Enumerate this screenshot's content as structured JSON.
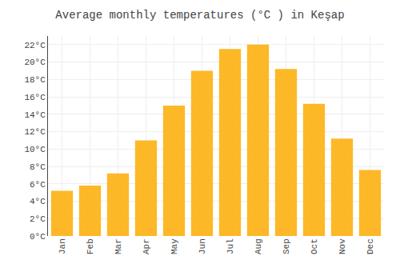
{
  "chart_data": {
    "type": "bar",
    "title": "Average monthly temperatures (°C ) in Keşap",
    "categories": [
      "Jan",
      "Feb",
      "Mar",
      "Apr",
      "May",
      "Jun",
      "Jul",
      "Aug",
      "Sep",
      "Oct",
      "Nov",
      "Dec"
    ],
    "values": [
      5.2,
      5.8,
      7.2,
      11.0,
      15.0,
      19.0,
      21.5,
      22.0,
      19.2,
      15.2,
      11.2,
      7.6
    ],
    "color": "#FDB827",
    "ylim": [
      0,
      23
    ],
    "yticks": [
      {
        "value": 0,
        "label": "0°C"
      },
      {
        "value": 2,
        "label": "2°C"
      },
      {
        "value": 4,
        "label": "4°C"
      },
      {
        "value": 6,
        "label": "6°C"
      },
      {
        "value": 8,
        "label": "8°C"
      },
      {
        "value": 10,
        "label": "10°C"
      },
      {
        "value": 12,
        "label": "12°C"
      },
      {
        "value": 14,
        "label": "14°C"
      },
      {
        "value": 16,
        "label": "16°C"
      },
      {
        "value": 18,
        "label": "18°C"
      },
      {
        "value": 20,
        "label": "20°C"
      },
      {
        "value": 22,
        "label": "22°C"
      }
    ],
    "grid": true
  }
}
